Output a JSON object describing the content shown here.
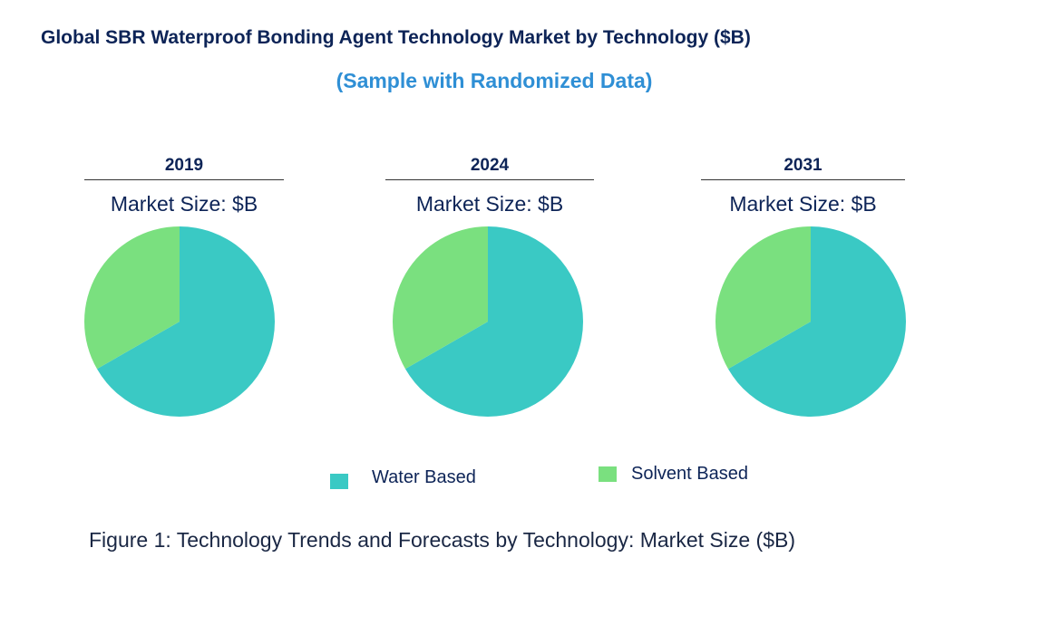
{
  "title": "Global SBR Waterproof Bonding Agent Technology Market by Technology ($B)",
  "subtitle": "(Sample with Randomized Data)",
  "caption": "Figure 1: Technology Trends and Forecasts by Technology: Market Size ($B)",
  "chart_data": {
    "type": "pie",
    "title": "Global SBR Waterproof Bonding Agent Technology Market by Technology ($B)",
    "legend_position": "bottom",
    "categories": [
      "Water Based",
      "Solvent Based"
    ],
    "colors": [
      "#3ac9c4",
      "#7ae07f"
    ],
    "charts": [
      {
        "year": "2019",
        "label": "Market Size: $B",
        "values": [
          66.7,
          33.3
        ]
      },
      {
        "year": "2024",
        "label": "Market Size: $B",
        "values": [
          66.7,
          33.3
        ]
      },
      {
        "year": "2031",
        "label": "Market Size: $B",
        "values": [
          66.7,
          33.3
        ]
      }
    ]
  }
}
